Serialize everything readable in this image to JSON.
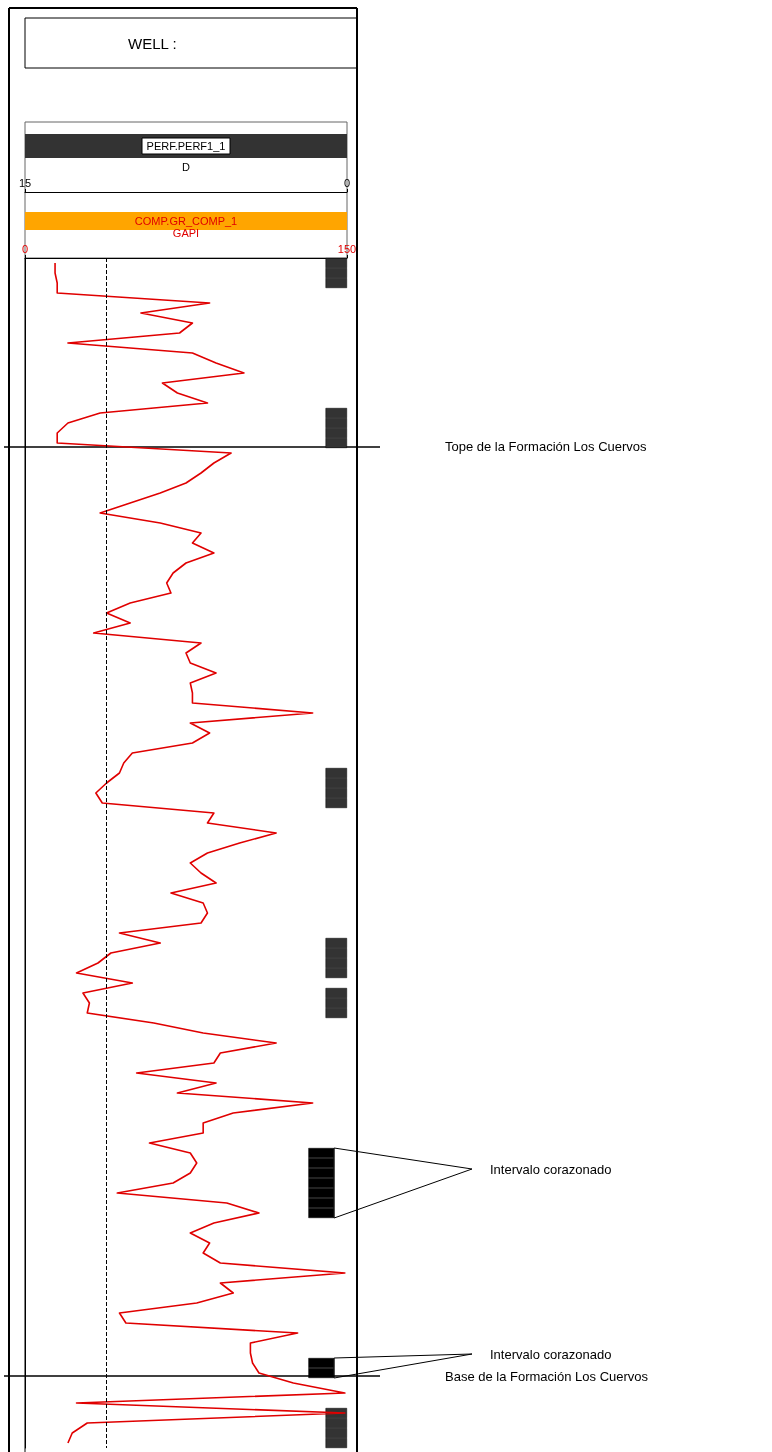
{
  "chart_data": {
    "type": "line",
    "orientation": "horizontal",
    "title": "WELL :",
    "tick_labels": "x",
    "xlabel": "GAPI",
    "xlim": [
      0,
      150
    ],
    "xticks": [
      0,
      150
    ],
    "x2label": "D",
    "x2lim": [
      15,
      0
    ],
    "x2ticks": [
      15,
      0
    ],
    "marker": "none",
    "line_style": "solid",
    "categories": [
      null,
      null,
      null,
      null,
      null,
      null,
      null,
      null,
      null,
      null,
      null,
      null,
      null,
      null,
      null,
      null,
      null,
      null,
      null,
      null,
      null,
      null,
      null,
      null,
      null,
      null,
      null,
      null,
      null,
      null,
      null,
      null,
      null,
      null,
      null,
      null,
      null,
      null,
      null,
      null,
      null,
      null,
      null,
      null,
      null,
      null,
      null,
      null,
      null,
      null,
      null,
      null,
      null,
      null,
      null,
      null,
      null,
      null,
      null,
      null,
      null,
      null,
      null,
      null,
      null,
      null,
      null,
      null,
      null,
      null,
      null,
      null,
      null,
      null,
      null,
      null,
      null,
      null,
      null,
      null,
      null,
      null,
      null,
      null,
      null,
      null,
      null,
      null,
      null,
      null,
      null,
      null,
      null,
      null,
      null,
      null,
      null,
      null,
      null,
      null,
      null,
      null,
      null,
      null,
      null,
      null,
      null,
      null,
      null,
      null,
      null,
      null,
      null,
      null,
      null,
      null,
      null,
      null,
      null
    ],
    "series": [
      {
        "name": "COMP.GR_COMP_1",
        "color": "#e00000",
        "values": [
          14,
          14,
          15,
          15,
          86,
          54,
          78,
          72,
          20,
          78,
          89,
          102,
          64,
          71,
          85,
          35,
          20,
          15,
          15,
          96,
          88,
          82,
          75,
          63,
          49,
          35,
          63,
          82,
          78,
          88,
          75,
          69,
          66,
          68,
          49,
          38,
          49,
          32,
          82,
          75,
          77,
          89,
          77,
          78,
          78,
          134,
          77,
          86,
          78,
          50,
          46,
          44,
          38,
          33,
          36,
          88,
          85,
          117,
          100,
          85,
          77,
          82,
          89,
          68,
          83,
          85,
          82,
          44,
          63,
          40,
          34,
          24,
          50,
          27,
          30,
          29,
          60,
          83,
          117,
          91,
          88,
          52,
          89,
          71,
          134,
          97,
          83,
          83,
          58,
          77,
          80,
          77,
          69,
          43,
          94,
          109,
          88,
          77,
          86,
          83,
          91,
          149,
          91,
          97,
          80,
          44,
          47,
          127,
          105,
          105,
          106,
          109,
          125,
          149,
          24,
          149,
          29,
          22,
          20
        ]
      },
      {
        "name": "PERF.PERF1_1",
        "type": "bar",
        "axis": "x2",
        "color": "#333333",
        "values": [
          1,
          1,
          1,
          null,
          null,
          null,
          null,
          null,
          null,
          null,
          null,
          null,
          null,
          null,
          null,
          1,
          1,
          1,
          1,
          null,
          null,
          null,
          null,
          null,
          null,
          null,
          null,
          null,
          null,
          null,
          null,
          null,
          null,
          null,
          null,
          null,
          null,
          null,
          null,
          null,
          null,
          null,
          null,
          null,
          null,
          null,
          null,
          null,
          null,
          null,
          null,
          1,
          1,
          1,
          1,
          null,
          null,
          null,
          null,
          null,
          null,
          null,
          null,
          null,
          null,
          null,
          null,
          null,
          1,
          1,
          1,
          1,
          null,
          1,
          1,
          1,
          null,
          null,
          null,
          null,
          null,
          null,
          null,
          null,
          null,
          null,
          null,
          null,
          null,
          null,
          null,
          null,
          null,
          null,
          null,
          null,
          null,
          null,
          null,
          null,
          null,
          null,
          null,
          null,
          null,
          null,
          null,
          null,
          null,
          null,
          null,
          null,
          null,
          null,
          null,
          1,
          1,
          1,
          1
        ]
      },
      {
        "type": "bar",
        "axis": "x2",
        "color": "#000000",
        "base": [
          null,
          null,
          null,
          null,
          null,
          null,
          null,
          null,
          null,
          null,
          null,
          null,
          null,
          null,
          null,
          null,
          null,
          null,
          null,
          null,
          null,
          null,
          null,
          null,
          null,
          null,
          null,
          null,
          null,
          null,
          null,
          null,
          null,
          null,
          null,
          null,
          null,
          null,
          null,
          null,
          null,
          null,
          null,
          null,
          null,
          null,
          null,
          null,
          null,
          null,
          null,
          null,
          null,
          null,
          null,
          null,
          null,
          null,
          null,
          null,
          null,
          null,
          null,
          null,
          null,
          null,
          null,
          null,
          null,
          null,
          null,
          null,
          null,
          null,
          null,
          null,
          null,
          null,
          null,
          null,
          null,
          null,
          null,
          null,
          null,
          null,
          null,
          null,
          null,
          0.6,
          0.6,
          0.6,
          0.6,
          0.6,
          0.6,
          0.6,
          null,
          null,
          null,
          null,
          null,
          null,
          null,
          null,
          null,
          null,
          null,
          null,
          null,
          null,
          0.6,
          0.6,
          null,
          null,
          null,
          null,
          null,
          null,
          null
        ],
        "values": [
          null,
          null,
          null,
          null,
          null,
          null,
          null,
          null,
          null,
          null,
          null,
          null,
          null,
          null,
          null,
          null,
          null,
          null,
          null,
          null,
          null,
          null,
          null,
          null,
          null,
          null,
          null,
          null,
          null,
          null,
          null,
          null,
          null,
          null,
          null,
          null,
          null,
          null,
          null,
          null,
          null,
          null,
          null,
          null,
          null,
          null,
          null,
          null,
          null,
          null,
          null,
          null,
          null,
          null,
          null,
          null,
          null,
          null,
          null,
          null,
          null,
          null,
          null,
          null,
          null,
          null,
          null,
          null,
          null,
          null,
          null,
          null,
          null,
          null,
          null,
          null,
          null,
          null,
          null,
          null,
          null,
          null,
          null,
          null,
          null,
          null,
          null,
          null,
          null,
          1.2,
          1.2,
          1.2,
          1.2,
          1.2,
          1.2,
          1.2,
          null,
          null,
          null,
          null,
          null,
          null,
          null,
          null,
          null,
          null,
          null,
          null,
          null,
          null,
          1.2,
          1.2,
          null,
          null,
          null,
          null,
          null,
          null,
          null
        ]
      }
    ],
    "ref_lines": [
      {
        "axis": "x",
        "value": 38,
        "line_style": "dashed",
        "color": "#000000"
      }
    ],
    "annotations": [
      "Tope de la Formación Los Cuervos",
      "Base de la Formación Los Cuervos",
      "Intervalo corazonado",
      "Intervalo corazonado"
    ]
  }
}
